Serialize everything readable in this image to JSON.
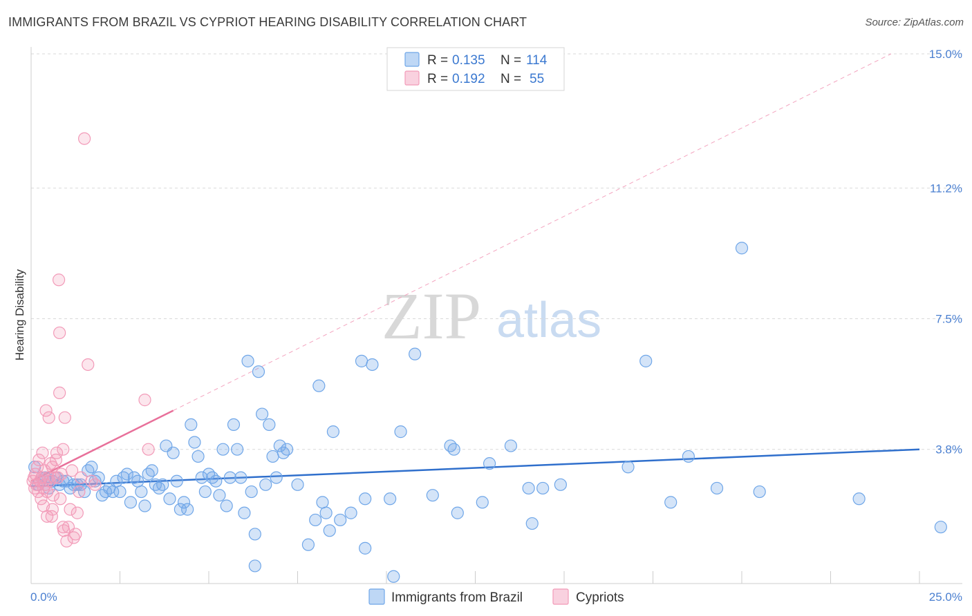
{
  "title": "IMMIGRANTS FROM BRAZIL VS CYPRIOT HEARING DISABILITY CORRELATION CHART",
  "source": "Source: ZipAtlas.com",
  "watermark": {
    "zip": "ZIP",
    "atlas": "atlas"
  },
  "colors": {
    "brazil": "#6fa6e8",
    "brazil_line": "#2f6fcc",
    "cypriot": "#f29ab8",
    "cypriot_line": "#e8709a",
    "grid": "#d9d9d9",
    "tick_label": "#4a7fd0"
  },
  "legend": {
    "row1": {
      "r_label": "R =",
      "r_value": "0.135",
      "n_label": "N =",
      "n_value": "114"
    },
    "row2": {
      "r_label": "R =",
      "r_value": "0.192",
      "n_label": "N =",
      "n_value": "55"
    }
  },
  "chart_data": {
    "type": "scatter",
    "title": "IMMIGRANTS FROM BRAZIL VS CYPRIOT HEARING DISABILITY CORRELATION CHART",
    "xlabel": "",
    "ylabel": "Hearing Disability",
    "xlim": [
      0,
      25
    ],
    "ylim": [
      0,
      15
    ],
    "x_tick_labels": [
      "0.0%",
      "25.0%"
    ],
    "y_ticks": [
      3.8,
      7.5,
      11.2,
      15.0
    ],
    "y_tick_labels": [
      "3.8%",
      "7.5%",
      "11.2%",
      "15.0%"
    ],
    "legend_position": "top-center",
    "series": [
      {
        "name": "Immigrants from Brazil",
        "trend": {
          "x": [
            0,
            25
          ],
          "y": [
            2.75,
            3.8
          ]
        },
        "points": [
          [
            0.1,
            3.3
          ],
          [
            0.2,
            2.8
          ],
          [
            0.3,
            3.0
          ],
          [
            0.4,
            3.0
          ],
          [
            0.5,
            2.7
          ],
          [
            0.6,
            2.9
          ],
          [
            0.7,
            3.0
          ],
          [
            0.8,
            2.8
          ],
          [
            0.9,
            2.9
          ],
          [
            1.0,
            2.9
          ],
          [
            1.1,
            2.7
          ],
          [
            1.2,
            2.8
          ],
          [
            1.3,
            2.8
          ],
          [
            1.4,
            2.8
          ],
          [
            1.5,
            2.6
          ],
          [
            1.6,
            3.2
          ],
          [
            1.7,
            3.3
          ],
          [
            1.8,
            2.9
          ],
          [
            1.9,
            3.0
          ],
          [
            2.0,
            2.5
          ],
          [
            2.1,
            2.6
          ],
          [
            2.2,
            2.7
          ],
          [
            2.3,
            2.6
          ],
          [
            2.4,
            2.9
          ],
          [
            2.5,
            2.6
          ],
          [
            2.6,
            3.0
          ],
          [
            2.7,
            3.1
          ],
          [
            2.8,
            2.3
          ],
          [
            2.9,
            3.0
          ],
          [
            3.0,
            2.9
          ],
          [
            3.1,
            2.6
          ],
          [
            3.2,
            2.2
          ],
          [
            3.3,
            3.1
          ],
          [
            3.4,
            3.2
          ],
          [
            3.5,
            2.8
          ],
          [
            3.6,
            2.7
          ],
          [
            3.7,
            2.8
          ],
          [
            3.8,
            3.9
          ],
          [
            3.9,
            2.4
          ],
          [
            4.0,
            3.7
          ],
          [
            4.1,
            2.9
          ],
          [
            4.2,
            2.1
          ],
          [
            4.3,
            2.3
          ],
          [
            4.4,
            2.1
          ],
          [
            4.5,
            4.5
          ],
          [
            4.6,
            4.0
          ],
          [
            4.7,
            3.6
          ],
          [
            4.8,
            3.0
          ],
          [
            4.9,
            2.6
          ],
          [
            5.0,
            3.1
          ],
          [
            5.1,
            3.0
          ],
          [
            5.2,
            2.9
          ],
          [
            5.3,
            2.5
          ],
          [
            5.4,
            3.8
          ],
          [
            5.5,
            2.2
          ],
          [
            5.6,
            3.0
          ],
          [
            5.7,
            4.5
          ],
          [
            5.8,
            3.8
          ],
          [
            5.9,
            3.0
          ],
          [
            6.0,
            2.0
          ],
          [
            6.1,
            6.3
          ],
          [
            6.2,
            2.6
          ],
          [
            6.3,
            1.4
          ],
          [
            6.4,
            6.0
          ],
          [
            6.5,
            4.8
          ],
          [
            6.6,
            2.8
          ],
          [
            6.7,
            4.5
          ],
          [
            6.8,
            3.6
          ],
          [
            6.9,
            3.0
          ],
          [
            7.0,
            3.9
          ],
          [
            7.1,
            3.7
          ],
          [
            7.2,
            3.8
          ],
          [
            7.5,
            2.8
          ],
          [
            7.8,
            1.1
          ],
          [
            8.0,
            1.8
          ],
          [
            8.1,
            5.6
          ],
          [
            8.2,
            2.3
          ],
          [
            8.3,
            2.0
          ],
          [
            8.4,
            1.5
          ],
          [
            8.5,
            4.3
          ],
          [
            8.7,
            1.8
          ],
          [
            9.0,
            2.0
          ],
          [
            9.3,
            6.3
          ],
          [
            9.4,
            2.4
          ],
          [
            9.6,
            6.2
          ],
          [
            10.1,
            2.4
          ],
          [
            10.4,
            4.3
          ],
          [
            10.8,
            6.5
          ],
          [
            11.3,
            2.5
          ],
          [
            11.8,
            3.9
          ],
          [
            11.9,
            3.8
          ],
          [
            12.0,
            2.0
          ],
          [
            12.7,
            2.3
          ],
          [
            12.9,
            3.4
          ],
          [
            13.5,
            3.9
          ],
          [
            14.0,
            2.7
          ],
          [
            14.1,
            1.7
          ],
          [
            14.4,
            2.7
          ],
          [
            14.9,
            2.8
          ],
          [
            16.8,
            3.3
          ],
          [
            17.3,
            6.3
          ],
          [
            18.0,
            2.3
          ],
          [
            18.5,
            3.6
          ],
          [
            19.3,
            2.7
          ],
          [
            20.0,
            9.5
          ],
          [
            20.5,
            2.6
          ],
          [
            23.3,
            2.4
          ],
          [
            25.6,
            1.6
          ],
          [
            6.3,
            0.5
          ],
          [
            10.2,
            0.2
          ],
          [
            9.4,
            1.0
          ]
        ]
      },
      {
        "name": "Cypriots",
        "trend": {
          "x": [
            0,
            4
          ],
          "y": [
            2.9,
            4.9
          ]
        },
        "points": [
          [
            0.05,
            2.9
          ],
          [
            0.08,
            3.0
          ],
          [
            0.1,
            2.7
          ],
          [
            0.12,
            3.1
          ],
          [
            0.15,
            2.8
          ],
          [
            0.18,
            3.3
          ],
          [
            0.2,
            2.6
          ],
          [
            0.22,
            3.5
          ],
          [
            0.25,
            2.9
          ],
          [
            0.28,
            2.4
          ],
          [
            0.3,
            3.0
          ],
          [
            0.32,
            3.7
          ],
          [
            0.35,
            2.7
          ],
          [
            0.38,
            3.2
          ],
          [
            0.4,
            2.8
          ],
          [
            0.42,
            4.9
          ],
          [
            0.45,
            2.6
          ],
          [
            0.48,
            3.0
          ],
          [
            0.5,
            4.7
          ],
          [
            0.52,
            2.9
          ],
          [
            0.55,
            3.4
          ],
          [
            0.58,
            1.9
          ],
          [
            0.6,
            3.3
          ],
          [
            0.62,
            2.5
          ],
          [
            0.65,
            3.0
          ],
          [
            0.7,
            3.5
          ],
          [
            0.72,
            3.7
          ],
          [
            0.75,
            3.0
          ],
          [
            0.78,
            8.6
          ],
          [
            0.8,
            5.4
          ],
          [
            0.82,
            2.4
          ],
          [
            0.85,
            3.1
          ],
          [
            0.9,
            3.8
          ],
          [
            0.92,
            1.5
          ],
          [
            0.95,
            4.7
          ],
          [
            1.0,
            1.2
          ],
          [
            1.05,
            1.6
          ],
          [
            1.1,
            2.1
          ],
          [
            1.15,
            3.2
          ],
          [
            1.2,
            1.3
          ],
          [
            1.25,
            1.4
          ],
          [
            1.3,
            2.0
          ],
          [
            1.35,
            2.6
          ],
          [
            1.4,
            3.0
          ],
          [
            1.5,
            12.6
          ],
          [
            1.6,
            6.2
          ],
          [
            1.7,
            2.9
          ],
          [
            1.8,
            2.8
          ],
          [
            0.8,
            7.1
          ],
          [
            0.6,
            2.1
          ],
          [
            0.45,
            1.9
          ],
          [
            0.35,
            2.2
          ],
          [
            3.2,
            5.2
          ],
          [
            3.3,
            3.8
          ],
          [
            0.9,
            1.6
          ]
        ]
      }
    ]
  },
  "bottom_legend": {
    "brazil": "Immigrants from Brazil",
    "cypriot": "Cypriots"
  }
}
